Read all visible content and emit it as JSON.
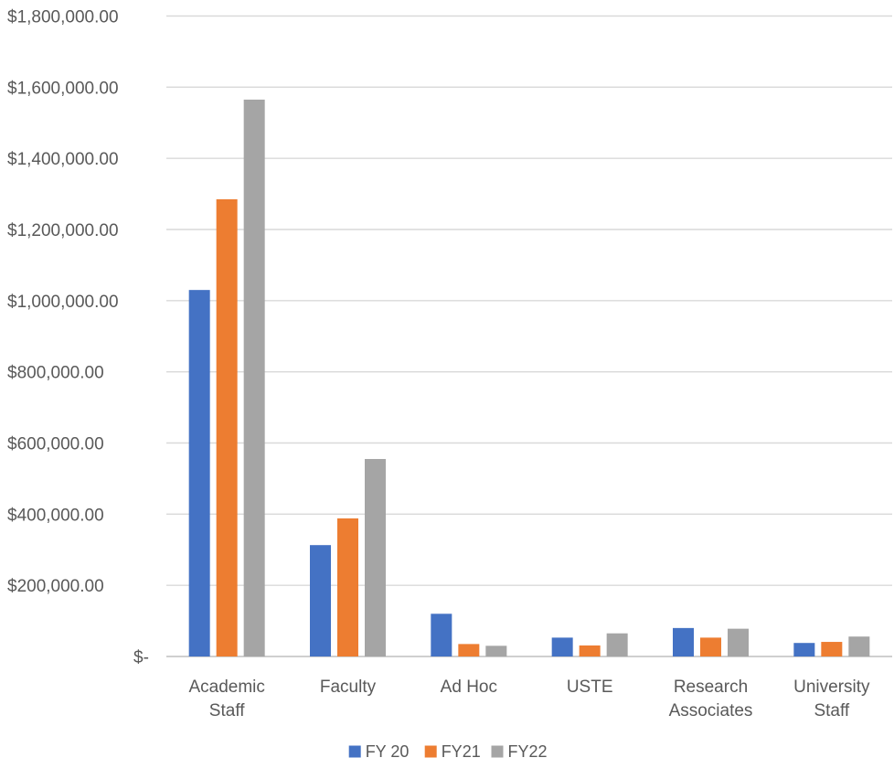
{
  "chart_data": {
    "type": "bar",
    "categories": [
      [
        "Academic",
        "Staff"
      ],
      [
        "Faculty"
      ],
      [
        "Ad Hoc"
      ],
      [
        "USTE"
      ],
      [
        "Research",
        "Associates"
      ],
      [
        "University",
        "Staff"
      ]
    ],
    "series": [
      {
        "name": "FY 20",
        "color": "#4472C4",
        "values": [
          1030000,
          313000,
          120000,
          53000,
          80000,
          38000
        ]
      },
      {
        "name": "FY21",
        "color": "#ED7D31",
        "values": [
          1285000,
          388000,
          35000,
          31000,
          53000,
          41000
        ]
      },
      {
        "name": "FY22",
        "color": "#A5A5A5",
        "values": [
          1565000,
          555000,
          30000,
          65000,
          78000,
          56000
        ]
      }
    ],
    "yticks": [
      {
        "value": 0,
        "label": "$-"
      },
      {
        "value": 200000,
        "label": "$200,000.00"
      },
      {
        "value": 400000,
        "label": "$400,000.00"
      },
      {
        "value": 600000,
        "label": "$600,000.00"
      },
      {
        "value": 800000,
        "label": "$800,000.00"
      },
      {
        "value": 1000000,
        "label": "$1,000,000.00"
      },
      {
        "value": 1200000,
        "label": "$1,200,000.00"
      },
      {
        "value": 1400000,
        "label": "$1,400,000.00"
      },
      {
        "value": 1600000,
        "label": "$1,600,000.00"
      },
      {
        "value": 1800000,
        "label": "$1,800,000.00"
      }
    ],
    "ylim": [
      0,
      1800000
    ],
    "grid": true,
    "legend_position": "bottom",
    "gridline_color": "#D9D9D9",
    "text_color": "#595959"
  }
}
